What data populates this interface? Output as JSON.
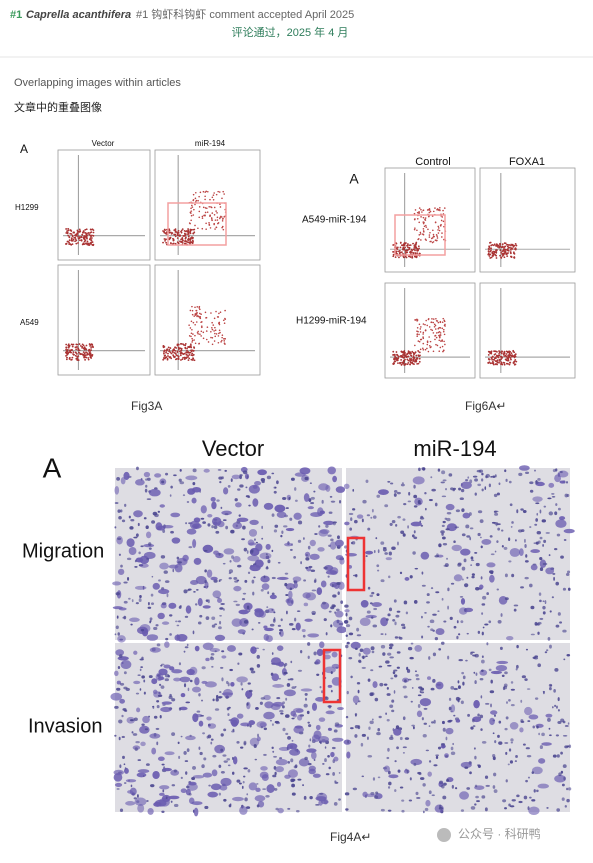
{
  "header": {
    "rank": "#1",
    "species": "Caprella acanthifera",
    "note": "#1 钩虾科钩虾 comment accepted April 2025",
    "translation": "评论通过，2025 年 4 月"
  },
  "section": {
    "title": "Overlapping images within articles",
    "title_zh": "文章中的重叠图像"
  },
  "fig3a": {
    "panel": "A",
    "columns": [
      "Vector",
      "miR-194"
    ],
    "rows": [
      "H1299",
      "A549"
    ],
    "caption": "Fig3A"
  },
  "fig6a": {
    "panel": "A",
    "columns": [
      "Control",
      "FOXA1"
    ],
    "rows": [
      "A549-miR-194",
      "H1299-miR-194"
    ],
    "caption": "Fig6A↵"
  },
  "fig4a": {
    "panel": "A",
    "columns": [
      "Vector",
      "miR-194"
    ],
    "rows": [
      "Migration",
      "Invasion"
    ],
    "caption": "Fig4A↵"
  },
  "watermark": "公众号 · 科研鸭"
}
